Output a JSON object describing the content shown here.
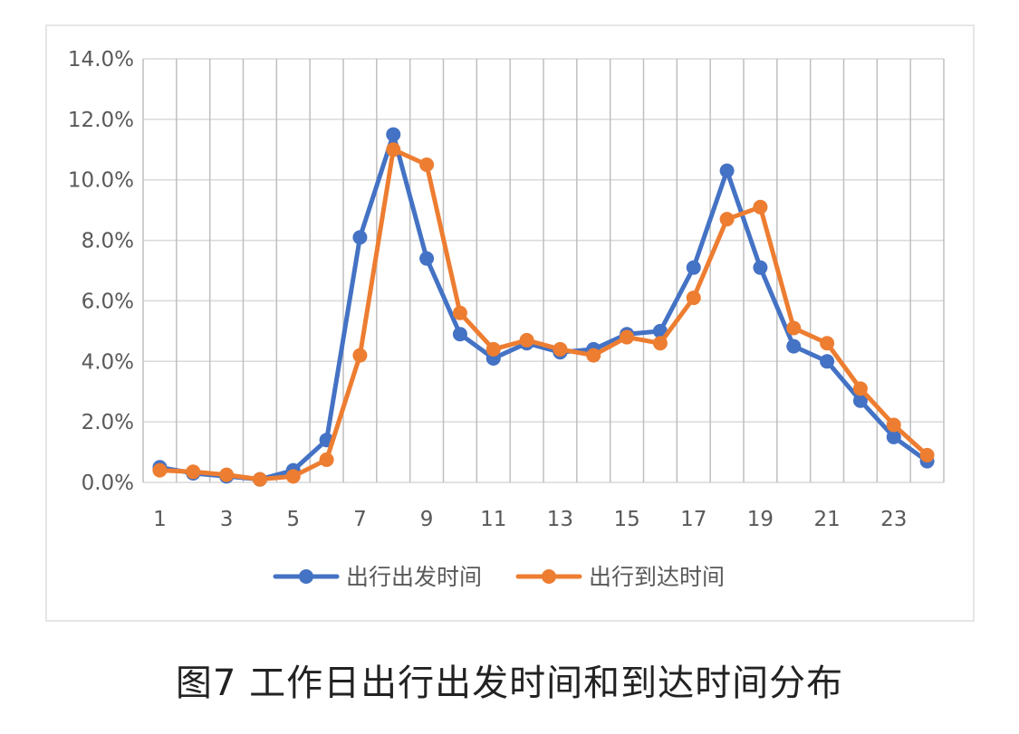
{
  "caption": "图7 工作日出行出发时间和到达时间分布",
  "chart_data": {
    "type": "line",
    "x": [
      1,
      2,
      3,
      4,
      5,
      6,
      7,
      8,
      9,
      10,
      11,
      12,
      13,
      14,
      15,
      16,
      17,
      18,
      19,
      20,
      21,
      22,
      23,
      24
    ],
    "x_tick_labels": [
      "1",
      "3",
      "5",
      "7",
      "9",
      "11",
      "13",
      "15",
      "17",
      "19",
      "21",
      "23"
    ],
    "y_tick_labels": [
      "0.0%",
      "2.0%",
      "4.0%",
      "6.0%",
      "8.0%",
      "10.0%",
      "12.0%",
      "14.0%"
    ],
    "ylim": [
      0,
      14
    ],
    "grid": {
      "vertical": true,
      "horizontal": true
    },
    "legend_position": "bottom",
    "series": [
      {
        "name": "出行出发时间",
        "color": "#4472C4",
        "values": [
          0.5,
          0.3,
          0.2,
          0.1,
          0.4,
          1.4,
          8.1,
          11.5,
          7.4,
          4.9,
          4.1,
          4.6,
          4.3,
          4.4,
          4.9,
          5.0,
          7.1,
          10.3,
          7.1,
          4.5,
          4.0,
          2.7,
          1.5,
          0.7
        ]
      },
      {
        "name": "出行到达时间",
        "color": "#ED7D31",
        "values": [
          0.4,
          0.35,
          0.25,
          0.1,
          0.2,
          0.75,
          4.2,
          11.0,
          10.5,
          5.6,
          4.4,
          4.7,
          4.4,
          4.2,
          4.8,
          4.6,
          6.1,
          8.7,
          9.1,
          5.1,
          4.6,
          3.1,
          1.9,
          0.9
        ]
      }
    ]
  }
}
